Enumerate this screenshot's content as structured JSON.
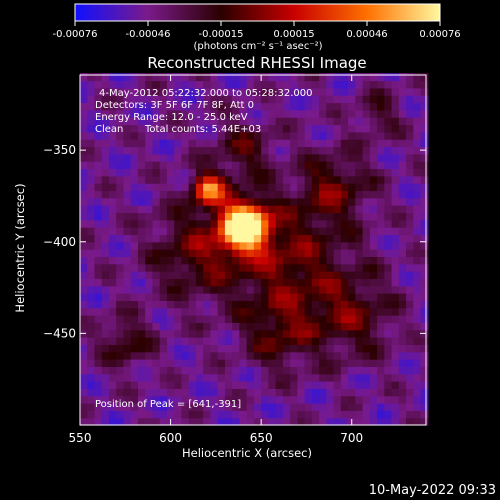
{
  "chart_data": {
    "type": "heatmap",
    "title": "Reconstructed RHESSI Image",
    "xlabel": "Heliocentric X (arcsec)",
    "ylabel": "Heliocentric Y (arcsec)",
    "xlim": [
      550,
      741
    ],
    "ylim": [
      -500,
      -309
    ],
    "x_ticks": [
      550,
      600,
      650,
      700
    ],
    "y_ticks": [
      -350,
      -400,
      -450
    ],
    "grid": false,
    "colorbar": {
      "min": -0.00076,
      "max": 0.00076,
      "ticks": [
        "-0.00076",
        "-0.00046",
        "-0.00015",
        "0.00015",
        "0.00046",
        "0.00076"
      ],
      "unit_label": "(photons cm⁻² s⁻¹ asec⁻²)",
      "colors": [
        "#1010ff",
        "#7a1a8a",
        "#2a0000",
        "#c80000",
        "#ff7000",
        "#fff8a0"
      ]
    },
    "annotations": {
      "time_range": "4-May-2012 05:22:32.000 to 05:28:32.000",
      "detectors": "Detectors: 3F 5F 6F 7F 8F, Att 0",
      "energy_range": "Energy Range: 12.0 - 25.0 keV",
      "algorithm": "Clean",
      "total_counts": "Total counts: 5.44E+03",
      "peak_position": "Position of Peak = [641,-391]"
    },
    "peak": {
      "x": 641,
      "y": -391
    },
    "sources": [
      {
        "x": 641,
        "y": -391,
        "sigma": 9,
        "amplitude": 1.0
      },
      {
        "x": 621,
        "y": -371,
        "sigma": 6,
        "amplitude": 0.62
      },
      {
        "x": 665,
        "y": -410,
        "sigma": 22,
        "amplitude": 0.28
      },
      {
        "x": 615,
        "y": -405,
        "sigma": 18,
        "amplitude": 0.26
      },
      {
        "x": 690,
        "y": -370,
        "sigma": 14,
        "amplitude": 0.25
      },
      {
        "x": 700,
        "y": -440,
        "sigma": 16,
        "amplitude": 0.24
      },
      {
        "x": 575,
        "y": -455,
        "sigma": 10,
        "amplitude": 0.22
      },
      {
        "x": 640,
        "y": -350,
        "sigma": 12,
        "amplitude": 0.2
      },
      {
        "x": 660,
        "y": -450,
        "sigma": 14,
        "amplitude": 0.22
      },
      {
        "x": 715,
        "y": -330,
        "sigma": 9,
        "amplitude": 0.16
      }
    ]
  },
  "footer": {
    "date": "10-May-2022 09:33"
  }
}
